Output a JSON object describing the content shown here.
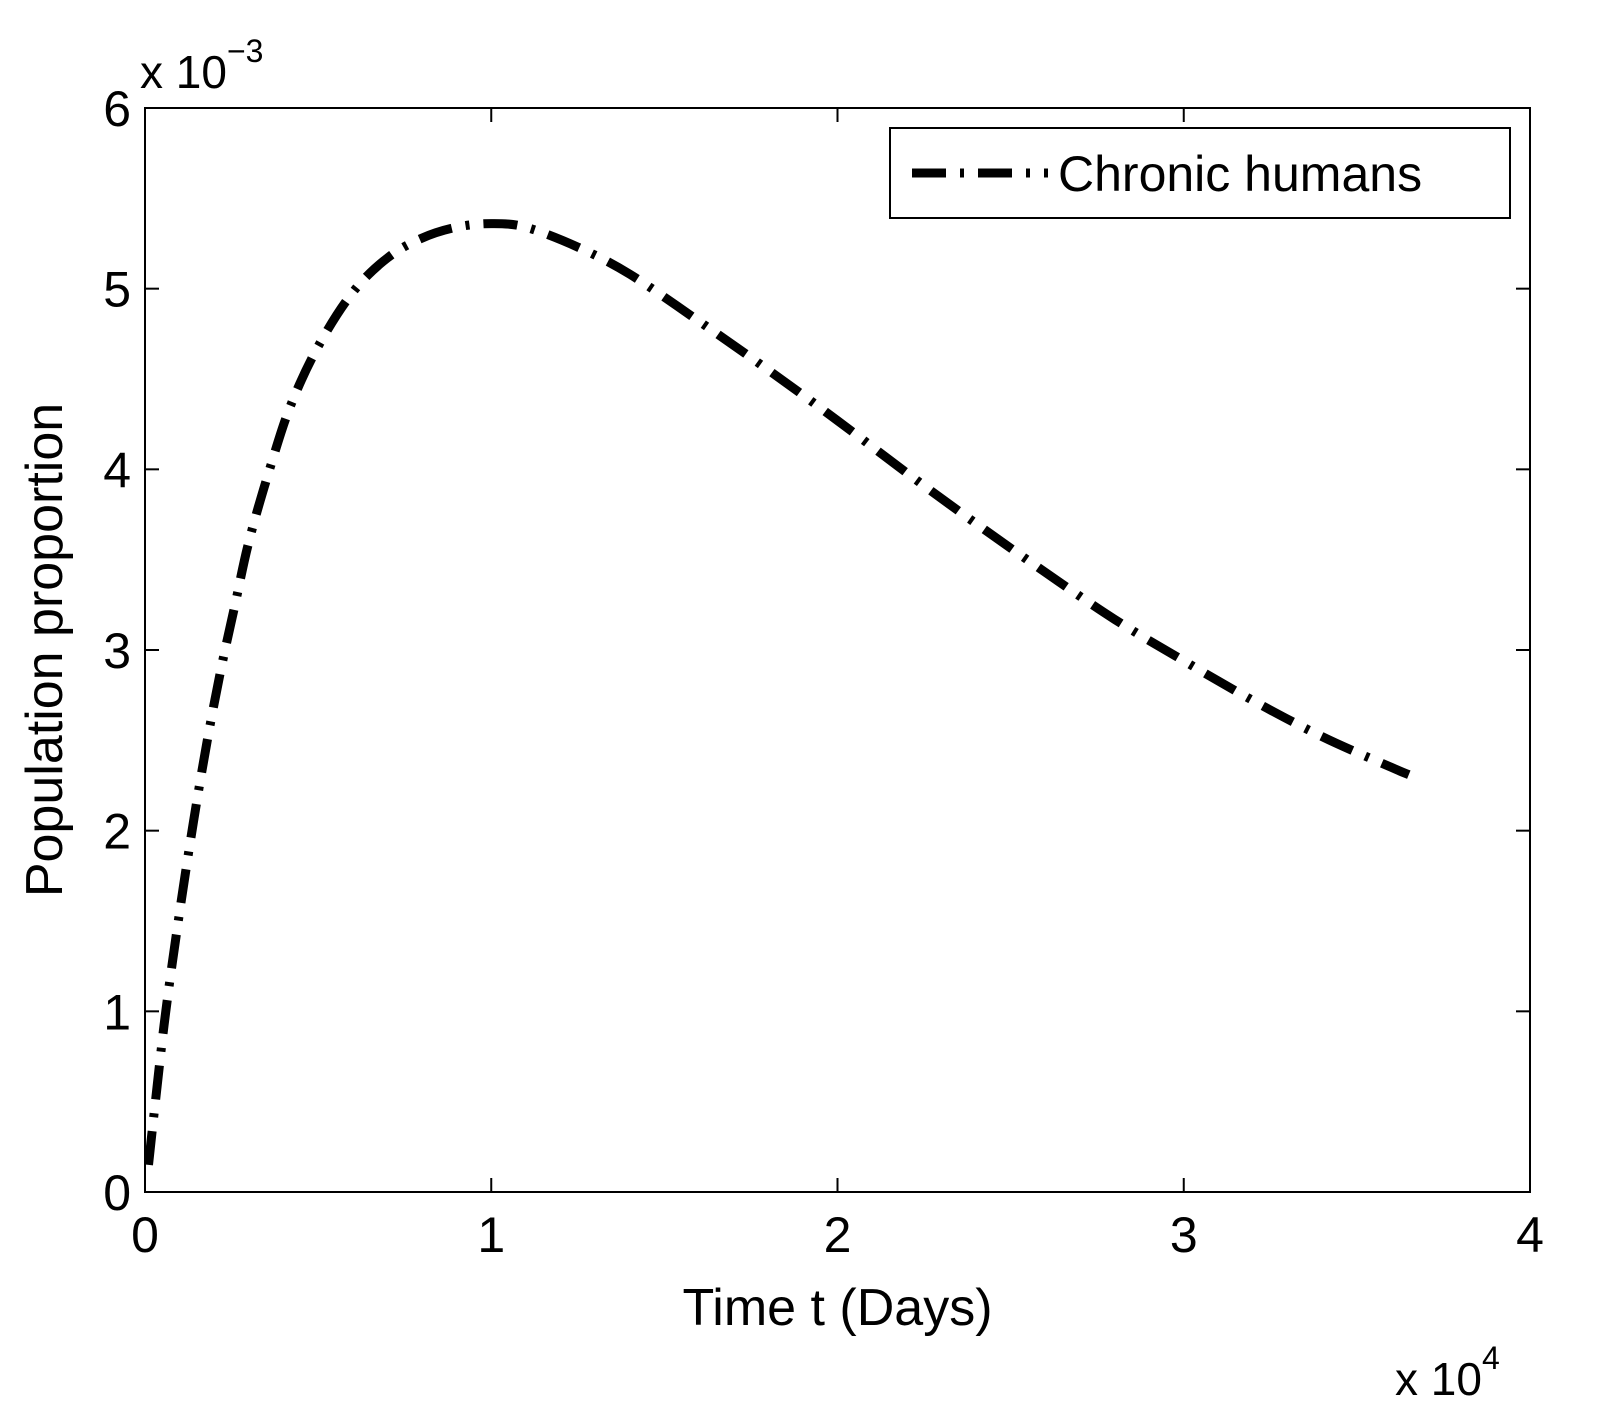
{
  "chart_data": {
    "type": "line",
    "title": "",
    "xlabel": "Time t (Days)",
    "ylabel": "Population proportion",
    "xlim": [
      0,
      4
    ],
    "ylim": [
      0,
      6
    ],
    "x_multiplier": {
      "base": "x 10",
      "exponent": "4"
    },
    "y_multiplier": {
      "base": "x 10",
      "exponent": "−3"
    },
    "x_ticks": [
      0,
      1,
      2,
      3,
      4
    ],
    "x_tick_labels": [
      "0",
      "1",
      "2",
      "3",
      "4"
    ],
    "y_ticks": [
      0,
      1,
      2,
      3,
      4,
      5,
      6
    ],
    "y_tick_labels": [
      "0",
      "1",
      "2",
      "3",
      "4",
      "5",
      "6"
    ],
    "grid": false,
    "legend_position": "top-right",
    "series": [
      {
        "name": "Chronic humans",
        "color": "#000000",
        "line_style": "dash-dot",
        "x": [
          0.01,
          0.03,
          0.06,
          0.1,
          0.14,
          0.18,
          0.22,
          0.26,
          0.3,
          0.36,
          0.42,
          0.5,
          0.6,
          0.7,
          0.8,
          0.9,
          1.0,
          1.1,
          1.25,
          1.4,
          1.6,
          1.8,
          2.0,
          2.2,
          2.4,
          2.6,
          2.8,
          3.0,
          3.2,
          3.4,
          3.6,
          3.65
        ],
        "values": [
          0.15,
          0.5,
          1.0,
          1.55,
          2.05,
          2.5,
          2.9,
          3.25,
          3.6,
          4.0,
          4.35,
          4.68,
          4.98,
          5.17,
          5.28,
          5.34,
          5.36,
          5.34,
          5.23,
          5.08,
          4.82,
          4.55,
          4.27,
          3.98,
          3.7,
          3.43,
          3.17,
          2.94,
          2.72,
          2.52,
          2.35,
          2.31
        ]
      }
    ]
  }
}
